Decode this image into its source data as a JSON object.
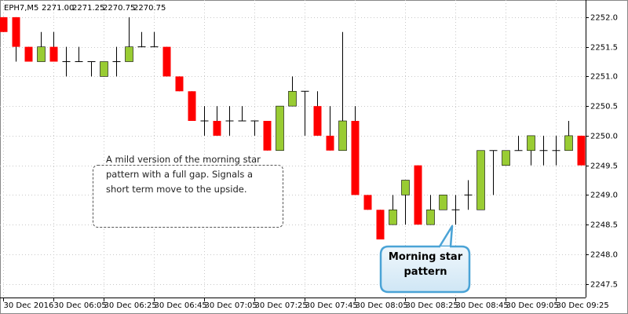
{
  "chart_data": {
    "type": "candlestick",
    "symbol": "EPH7,M5",
    "header_values": [
      {
        "value": 2271,
        "label": "2271.00"
      },
      2271.25,
      2270.75,
      2270.75
    ],
    "categories": [
      "30 Dec 2016",
      null,
      null,
      null,
      "30 Dec 06:05",
      null,
      null,
      null,
      "30 Dec 06:25",
      null,
      null,
      null,
      "30 Dec 06:45",
      null,
      null,
      null,
      "30 Dec 07:05",
      null,
      null,
      null,
      "30 Dec 07:25",
      null,
      null,
      null,
      "30 Dec 07:45",
      null,
      null,
      null,
      "30 Dec 08:05",
      null,
      null,
      null,
      "30 Dec 08:25",
      null,
      null,
      null,
      "30 Dec 08:45",
      null,
      null,
      null,
      "30 Dec 09:05",
      null,
      null,
      null,
      "30 Dec 09:25",
      null,
      null
    ],
    "open": [
      2252,
      2252,
      2251.5,
      2251.25,
      2251.5,
      2251.25,
      2251.25,
      2251.25,
      2251,
      2251.25,
      2251.25,
      2251.5,
      2251.5,
      2251.5,
      2251,
      2250.75,
      2250.25,
      2250.25,
      2250.25,
      2250.25,
      2250.25,
      2250.25,
      2249.75,
      2250.5,
      2250.75,
      2250.5,
      2250,
      2249.75,
      2250.25,
      2249,
      2248.75,
      2248.5,
      2249,
      2249.5,
      2248.5,
      2248.75,
      2248.75,
      2249,
      2248.75,
      2249.75,
      2249.5,
      2249.75,
      2249.75,
      2249.75,
      2249.75,
      2249.75,
      2250
    ],
    "high": [
      2252,
      2252,
      2251.5,
      2251.75,
      2251.75,
      2251.5,
      2251.5,
      2251.25,
      2251.25,
      2251.5,
      2252,
      2251.75,
      2251.75,
      2251.5,
      2251,
      2250.75,
      2250.5,
      2250.5,
      2250.5,
      2250.5,
      2250.25,
      2250.25,
      2250.5,
      2251,
      2250.75,
      2250.75,
      2250.5,
      2251.75,
      2250.5,
      2249,
      2248.75,
      2249,
      2249.25,
      2249.5,
      2249,
      2249,
      2249,
      2249.25,
      2249.75,
      2249.75,
      2249.75,
      2250,
      2250,
      2250,
      2250,
      2250.25,
      2250
    ],
    "low": [
      2251.75,
      2251.25,
      2251.25,
      2251.25,
      2251.25,
      2251,
      2251.25,
      2251,
      2251,
      2251,
      2251.25,
      2251.5,
      2251.5,
      2251,
      2250.75,
      2250.25,
      2250,
      2250,
      2250,
      2250.25,
      2250,
      2249.75,
      2249.75,
      2250.5,
      2250,
      2250,
      2249.75,
      2249.75,
      2249,
      2248.75,
      2248.25,
      2248.5,
      2248.5,
      2248.5,
      2248.5,
      2248.75,
      2248.5,
      2248.75,
      2248.75,
      2249,
      2249.5,
      2249.75,
      2249.5,
      2249.5,
      2249.5,
      2249.75,
      2249.5
    ],
    "close": [
      2251.75,
      2251.5,
      2251.25,
      2251.5,
      2251.25,
      2251.25,
      2251.25,
      2251.25,
      2251.25,
      2251.25,
      2251.5,
      2251.5,
      2251.5,
      2251,
      2250.75,
      2250.25,
      2250.25,
      2250,
      2250.25,
      2250.25,
      2250.25,
      2249.75,
      2250.5,
      2250.75,
      2250.75,
      2250,
      2249.75,
      2250.25,
      2249,
      2248.75,
      2248.25,
      2248.75,
      2249.25,
      2248.5,
      2248.75,
      2249,
      2248.75,
      2249,
      2249.75,
      2249.75,
      2249.75,
      2249.75,
      2250,
      2249.75,
      2249.75,
      2250,
      2249.5
    ],
    "up_color": "#99cc33",
    "down_color": "#ff0000",
    "ylim": [
      2247.27,
      2252.29
    ],
    "yticks": [
      {
        "value": 2247.5,
        "label": "2247.5"
      },
      {
        "value": 2248,
        "label": "2248.0"
      },
      {
        "value": 2248.5,
        "label": "2248.5"
      },
      {
        "value": 2249,
        "label": "2249.0"
      },
      {
        "value": 2249.5,
        "label": "2249.5"
      },
      {
        "value": 2250,
        "label": "2250.0"
      },
      {
        "value": 2250.5,
        "label": "2250.5"
      },
      {
        "value": 2251,
        "label": "2251.0"
      },
      {
        "value": 2251.5,
        "label": "2251.5"
      },
      {
        "value": 2252,
        "label": "2252.0"
      }
    ],
    "grid": true,
    "annotations": [
      "A mild version of the morning star pattern with a full gap. Signals a short term move to the upside.",
      "Morning star pattern"
    ]
  }
}
